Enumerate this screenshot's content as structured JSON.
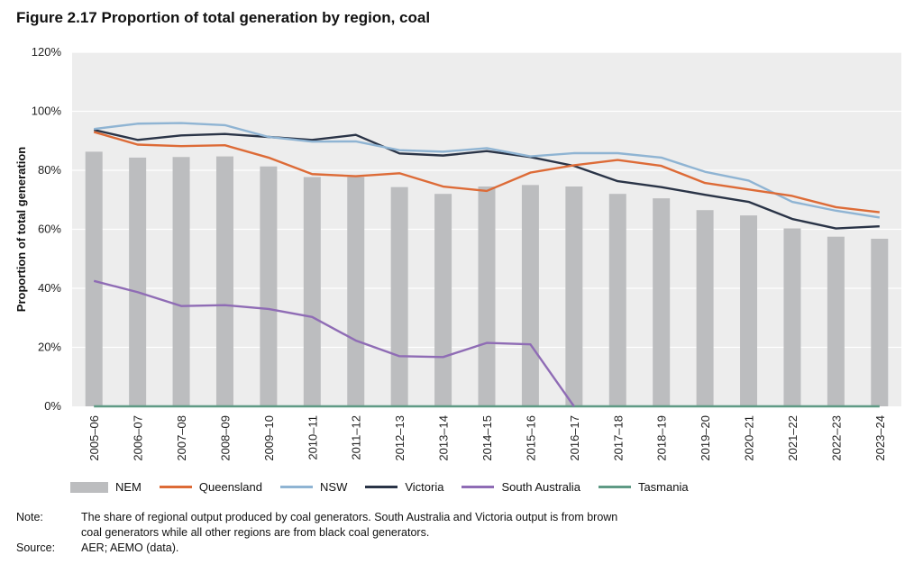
{
  "title": "Figure 2.17  Proportion of total generation by region, coal",
  "chart_data": {
    "type": "bar+line",
    "ylabel": "Proportion of total generation",
    "xlabel": "",
    "ylim": [
      0,
      120
    ],
    "yticks": [
      "0%",
      "20%",
      "40%",
      "60%",
      "80%",
      "100%",
      "120%"
    ],
    "grid": true,
    "legend": "bottom",
    "categories": [
      "2005–06",
      "2006–07",
      "2007–08",
      "2008–09",
      "2009–10",
      "2010–11",
      "2011–12",
      "2012–13",
      "2013–14",
      "2014–15",
      "2015–16",
      "2016–17",
      "2017–18",
      "2018–19",
      "2019–20",
      "2020–21",
      "2021–22",
      "2022–23",
      "2023–24"
    ],
    "series": [
      {
        "name": "NEM",
        "kind": "bar",
        "color": "#bcbdbf",
        "values": [
          86.3,
          84.3,
          84.5,
          84.7,
          81.3,
          77.7,
          77.7,
          74.3,
          72.0,
          74.5,
          75.0,
          74.5,
          72.0,
          70.5,
          66.5,
          64.7,
          60.3,
          57.5,
          56.8
        ]
      },
      {
        "name": "Queensland",
        "kind": "line",
        "color": "#dd6b37",
        "values": [
          93.0,
          88.7,
          88.2,
          88.5,
          84.3,
          78.7,
          78.0,
          79.0,
          74.5,
          73.0,
          79.2,
          81.7,
          83.5,
          81.5,
          75.7,
          73.5,
          71.3,
          67.5,
          65.8
        ]
      },
      {
        "name": "NSW",
        "kind": "line",
        "color": "#8fb4d3",
        "values": [
          94.0,
          95.8,
          96.0,
          95.3,
          91.3,
          89.7,
          89.8,
          86.8,
          86.3,
          87.5,
          84.7,
          85.8,
          85.8,
          84.3,
          79.5,
          76.5,
          69.3,
          66.3,
          64.0
        ]
      },
      {
        "name": "Victoria",
        "kind": "line",
        "color": "#2a3447",
        "values": [
          93.7,
          90.3,
          91.8,
          92.3,
          91.3,
          90.3,
          92.0,
          85.7,
          85.0,
          86.5,
          84.5,
          81.5,
          76.3,
          74.3,
          71.7,
          69.3,
          63.5,
          60.3,
          61.0
        ]
      },
      {
        "name": "South Australia",
        "kind": "line",
        "color": "#8f6cb5",
        "values": [
          42.5,
          38.7,
          34.0,
          34.3,
          33.0,
          30.3,
          22.3,
          17.0,
          16.7,
          21.5,
          21.0,
          0,
          null,
          null,
          null,
          null,
          null,
          null,
          null
        ]
      },
      {
        "name": "Tasmania",
        "kind": "line",
        "color": "#5f9a85",
        "values": [
          0,
          0,
          0,
          0,
          0,
          0,
          0,
          0,
          0,
          0,
          0,
          0,
          0,
          0,
          0,
          0,
          0,
          0,
          0
        ]
      }
    ]
  },
  "notes": {
    "note_label": "Note:",
    "note_text": "The share of regional output produced by coal generators. South Australia and Victoria output is from brown coal generators while all other regions are from black coal generators.",
    "source_label": "Source:",
    "source_text": "AER; AEMO (data)."
  }
}
